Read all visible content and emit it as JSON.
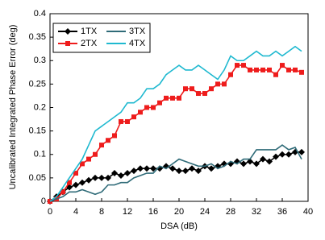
{
  "chart_data": {
    "type": "line",
    "x_label": "DSA (dB)",
    "y_label": "Uncalibrated Integrated Phase Error (deg)",
    "x": [
      0,
      1,
      2,
      3,
      4,
      5,
      6,
      7,
      8,
      9,
      10,
      11,
      12,
      13,
      14,
      15,
      16,
      17,
      18,
      19,
      20,
      21,
      22,
      23,
      24,
      25,
      26,
      27,
      28,
      29,
      30,
      31,
      32,
      33,
      34,
      35,
      36,
      37,
      38,
      39
    ],
    "series": [
      {
        "name": "1TX",
        "color": "#000000",
        "marker": "diamond",
        "values": [
          0,
          0.01,
          0.02,
          0.03,
          0.035,
          0.04,
          0.045,
          0.05,
          0.05,
          0.05,
          0.06,
          0.055,
          0.06,
          0.065,
          0.07,
          0.07,
          0.07,
          0.07,
          0.075,
          0.07,
          0.065,
          0.065,
          0.07,
          0.065,
          0.075,
          0.07,
          0.075,
          0.08,
          0.08,
          0.085,
          0.08,
          0.085,
          0.08,
          0.09,
          0.085,
          0.095,
          0.1,
          0.1,
          0.105,
          0.105
        ]
      },
      {
        "name": "2TX",
        "color": "#ee1c1c",
        "marker": "square",
        "values": [
          0,
          0.005,
          0.02,
          0.04,
          0.06,
          0.08,
          0.09,
          0.1,
          0.12,
          0.13,
          0.14,
          0.17,
          0.17,
          0.18,
          0.19,
          0.2,
          0.2,
          0.21,
          0.22,
          0.22,
          0.22,
          0.24,
          0.24,
          0.23,
          0.23,
          0.24,
          0.25,
          0.25,
          0.27,
          0.29,
          0.29,
          0.28,
          0.28,
          0.28,
          0.28,
          0.27,
          0.29,
          0.28,
          0.28,
          0.275
        ]
      },
      {
        "name": "3TX",
        "color": "#2f6b78",
        "values": [
          0,
          0.005,
          0.01,
          0.02,
          0.02,
          0.025,
          0.02,
          0.015,
          0.02,
          0.035,
          0.035,
          0.04,
          0.04,
          0.05,
          0.055,
          0.06,
          0.06,
          0.075,
          0.07,
          0.08,
          0.09,
          0.085,
          0.08,
          0.075,
          0.075,
          0.08,
          0.07,
          0.075,
          0.085,
          0.08,
          0.09,
          0.09,
          0.11,
          0.11,
          0.11,
          0.11,
          0.12,
          0.11,
          0.115,
          0.09
        ]
      },
      {
        "name": "4TX",
        "color": "#1fb9d0",
        "values": [
          0,
          0.01,
          0.03,
          0.05,
          0.07,
          0.09,
          0.12,
          0.15,
          0.16,
          0.17,
          0.18,
          0.19,
          0.21,
          0.21,
          0.22,
          0.24,
          0.24,
          0.25,
          0.27,
          0.28,
          0.29,
          0.28,
          0.28,
          0.29,
          0.28,
          0.27,
          0.26,
          0.28,
          0.31,
          0.3,
          0.3,
          0.31,
          0.32,
          0.31,
          0.31,
          0.32,
          0.31,
          0.32,
          0.33,
          0.32
        ]
      }
    ],
    "xlim": [
      0,
      40
    ],
    "xticks": [
      0,
      4,
      8,
      12,
      16,
      20,
      24,
      28,
      32,
      36,
      40
    ],
    "ylim": [
      0,
      0.4
    ],
    "yticks": [
      0,
      0.05,
      0.1,
      0.15,
      0.2,
      0.25,
      0.3,
      0.35,
      0.4
    ],
    "legend": "upper left",
    "grid": false
  }
}
